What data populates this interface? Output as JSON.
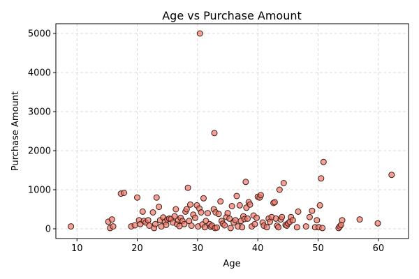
{
  "chart_data": {
    "type": "scatter",
    "title": "Age vs Purchase Amount",
    "xlabel": "Age",
    "ylabel": "Purchase Amount",
    "xlim": [
      6.5,
      65
    ],
    "ylim": [
      -250,
      5250
    ],
    "xticks": [
      10,
      20,
      30,
      40,
      50,
      60
    ],
    "yticks": [
      0,
      1000,
      2000,
      3000,
      4000,
      5000
    ],
    "grid": true,
    "marker_fill": "#f07868",
    "marker_edge": "#3a1a16",
    "points": [
      [
        9,
        60
      ],
      [
        15.2,
        180
      ],
      [
        15.5,
        20
      ],
      [
        15.8,
        240
      ],
      [
        16,
        60
      ],
      [
        17.3,
        900
      ],
      [
        17.8,
        920
      ],
      [
        19,
        60
      ],
      [
        19.6,
        90
      ],
      [
        20,
        800
      ],
      [
        20.3,
        220
      ],
      [
        20.5,
        120
      ],
      [
        20.9,
        440
      ],
      [
        21.1,
        200
      ],
      [
        21.4,
        160
      ],
      [
        21.8,
        220
      ],
      [
        22,
        80
      ],
      [
        22.6,
        420
      ],
      [
        22.8,
        20
      ],
      [
        23,
        120
      ],
      [
        23.2,
        800
      ],
      [
        23.6,
        560
      ],
      [
        23.8,
        220
      ],
      [
        24,
        60
      ],
      [
        24.3,
        290
      ],
      [
        24.6,
        180
      ],
      [
        24.8,
        100
      ],
      [
        25,
        240
      ],
      [
        25.3,
        260
      ],
      [
        25.6,
        250
      ],
      [
        25.9,
        160
      ],
      [
        26.2,
        320
      ],
      [
        26.4,
        500
      ],
      [
        26.6,
        120
      ],
      [
        26.8,
        220
      ],
      [
        27,
        70
      ],
      [
        27.2,
        280
      ],
      [
        27.5,
        200
      ],
      [
        27.8,
        120
      ],
      [
        28,
        440
      ],
      [
        28.2,
        500
      ],
      [
        28.4,
        1050
      ],
      [
        28.6,
        200
      ],
      [
        28.8,
        620
      ],
      [
        29,
        80
      ],
      [
        29.3,
        360
      ],
      [
        29.6,
        280
      ],
      [
        29.9,
        600
      ],
      [
        30.1,
        60
      ],
      [
        30.3,
        520
      ],
      [
        30.4,
        5000
      ],
      [
        30.6,
        420
      ],
      [
        30.8,
        110
      ],
      [
        31,
        780
      ],
      [
        31.2,
        40
      ],
      [
        31.4,
        200
      ],
      [
        31.7,
        400
      ],
      [
        32,
        120
      ],
      [
        32.2,
        50
      ],
      [
        32.4,
        80
      ],
      [
        32.7,
        500
      ],
      [
        32.8,
        2450
      ],
      [
        32.9,
        20
      ],
      [
        33,
        420
      ],
      [
        33.2,
        30
      ],
      [
        33.5,
        380
      ],
      [
        33.8,
        700
      ],
      [
        34,
        200
      ],
      [
        34.2,
        130
      ],
      [
        34.5,
        90
      ],
      [
        34.8,
        300
      ],
      [
        35,
        400
      ],
      [
        35.3,
        260
      ],
      [
        35.5,
        20
      ],
      [
        35.7,
        580
      ],
      [
        36,
        160
      ],
      [
        36.3,
        220
      ],
      [
        36.5,
        840
      ],
      [
        36.7,
        60
      ],
      [
        37,
        600
      ],
      [
        37.2,
        200
      ],
      [
        37.4,
        40
      ],
      [
        37.6,
        320
      ],
      [
        37.8,
        250
      ],
      [
        38,
        1200
      ],
      [
        38.1,
        540
      ],
      [
        38.3,
        260
      ],
      [
        38.5,
        680
      ],
      [
        38.7,
        620
      ],
      [
        39,
        60
      ],
      [
        39.3,
        340
      ],
      [
        39.5,
        120
      ],
      [
        39.8,
        280
      ],
      [
        40,
        820
      ],
      [
        40.3,
        800
      ],
      [
        40.5,
        860
      ],
      [
        40.8,
        160
      ],
      [
        41,
        80
      ],
      [
        41.5,
        40
      ],
      [
        41.8,
        260
      ],
      [
        42,
        180
      ],
      [
        42.3,
        300
      ],
      [
        42.6,
        660
      ],
      [
        42.8,
        680
      ],
      [
        43,
        260
      ],
      [
        43.2,
        80
      ],
      [
        43.4,
        40
      ],
      [
        43.6,
        1000
      ],
      [
        43.8,
        240
      ],
      [
        44,
        300
      ],
      [
        44.3,
        1170
      ],
      [
        44.6,
        100
      ],
      [
        44.8,
        80
      ],
      [
        45,
        140
      ],
      [
        45.3,
        180
      ],
      [
        45.5,
        300
      ],
      [
        45.8,
        220
      ],
      [
        46.5,
        40
      ],
      [
        46.7,
        440
      ],
      [
        48,
        60
      ],
      [
        48.6,
        300
      ],
      [
        49,
        460
      ],
      [
        49.5,
        40
      ],
      [
        49.8,
        220
      ],
      [
        50.1,
        40
      ],
      [
        50.3,
        600
      ],
      [
        50.5,
        1290
      ],
      [
        50.7,
        20
      ],
      [
        50.9,
        1710
      ],
      [
        53.4,
        20
      ],
      [
        53.6,
        60
      ],
      [
        53.8,
        100
      ],
      [
        54,
        220
      ],
      [
        56.9,
        240
      ],
      [
        59.9,
        140
      ],
      [
        62.2,
        1380
      ]
    ]
  }
}
